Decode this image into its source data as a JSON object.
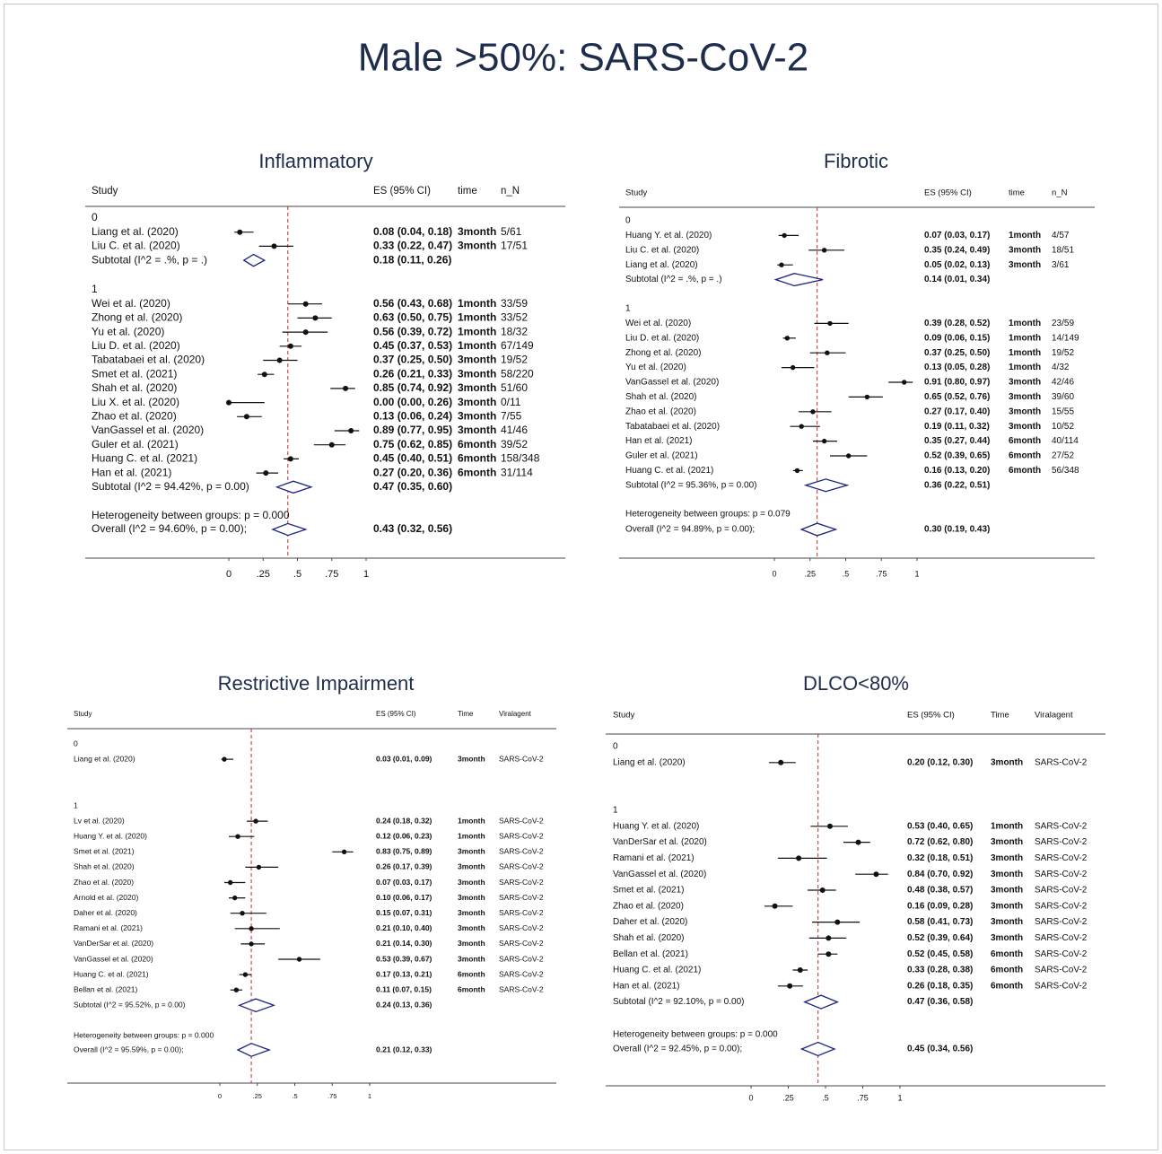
{
  "title": "Male >50%: SARS-CoV-2",
  "chart_data": [
    {
      "type": "forest",
      "title": "Inflammatory",
      "headers": [
        "Study",
        "ES (95% CI)",
        "time",
        "n_N"
      ],
      "groups": [
        {
          "label": "0",
          "studies": [
            "Liang et al.  (2020)",
            "Liu C. et al. (2020)"
          ],
          "values": [
            0.08,
            0.33
          ],
          "lower": [
            0.04,
            0.22
          ],
          "upper": [
            0.18,
            0.47
          ],
          "value_labels": [
            "0.08 (0.04, 0.18)",
            "0.33 (0.22, 0.47)"
          ],
          "time": [
            "3month",
            "3month"
          ],
          "extra": [
            "5/61",
            "17/51"
          ],
          "subtotal": {
            "label": "Subtotal  (I^2 = .%, p = .)",
            "value": 0.18,
            "lower": 0.11,
            "upper": 0.26,
            "value_label": "0.18 (0.11, 0.26)"
          }
        },
        {
          "label": "1",
          "studies": [
            "Wei et al. (2020)",
            "Zhong et al. (2020)",
            "Yu et al. (2020)",
            "Liu D. et al. (2020)",
            "Tabatabaei et al. (2020)",
            "Smet et al. (2021)",
            "Shah et al. (2020)",
            "Liu X. et al. (2020)",
            "Zhao et al. (2020)",
            "VanGassel et al. (2020)",
            "Guler et al. (2021)",
            "Huang C. et al. (2021)",
            "Han et al. (2021)"
          ],
          "values": [
            0.56,
            0.63,
            0.56,
            0.45,
            0.37,
            0.26,
            0.85,
            0.0,
            0.13,
            0.89,
            0.75,
            0.45,
            0.27
          ],
          "lower": [
            0.43,
            0.5,
            0.39,
            0.37,
            0.25,
            0.21,
            0.74,
            0.0,
            0.06,
            0.77,
            0.62,
            0.4,
            0.2
          ],
          "upper": [
            0.68,
            0.75,
            0.72,
            0.53,
            0.5,
            0.33,
            0.92,
            0.26,
            0.24,
            0.95,
            0.85,
            0.51,
            0.36
          ],
          "value_labels": [
            "0.56 (0.43, 0.68)",
            "0.63 (0.50, 0.75)",
            "0.56 (0.39, 0.72)",
            "0.45 (0.37, 0.53)",
            "0.37 (0.25, 0.50)",
            "0.26 (0.21, 0.33)",
            "0.85 (0.74, 0.92)",
            "0.00 (0.00, 0.26)",
            "0.13 (0.06, 0.24)",
            "0.89 (0.77, 0.95)",
            "0.75 (0.62, 0.85)",
            "0.45 (0.40, 0.51)",
            "0.27 (0.20, 0.36)"
          ],
          "time": [
            "1month",
            "1month",
            "1month",
            "1month",
            "3month",
            "3month",
            "3month",
            "3month",
            "3month",
            "3month",
            "6month",
            "6month",
            "6month"
          ],
          "extra": [
            "33/59",
            "33/52",
            "18/32",
            "67/149",
            "19/52",
            "58/220",
            "51/60",
            "0/11",
            "7/55",
            "41/46",
            "39/52",
            "158/348",
            "31/114"
          ],
          "subtotal": {
            "label": "Subtotal  (I^2 = 94.42%, p = 0.00)",
            "value": 0.47,
            "lower": 0.35,
            "upper": 0.6,
            "value_label": "0.47 (0.35, 0.60)"
          }
        }
      ],
      "heterogeneity": "Heterogeneity between groups: p = 0.000",
      "overall": {
        "label": "Overall  (I^2 = 94.60%, p = 0.00);",
        "value": 0.43,
        "lower": 0.32,
        "upper": 0.56,
        "value_label": "0.43 (0.32, 0.56)"
      },
      "xlim": [
        0,
        1
      ],
      "xticks": [
        0,
        {
          "value": 0.25,
          "label": ".25"
        },
        {
          "value": 0.5,
          "label": ".5"
        },
        {
          "value": 0.75,
          "label": ".75"
        },
        1
      ]
    },
    {
      "type": "forest",
      "title": "Fibrotic",
      "headers": [
        "Study",
        "ES (95% CI)",
        "time",
        "n_N"
      ],
      "groups": [
        {
          "label": "0",
          "studies": [
            "Huang Y. et al. (2020)",
            "Liu C. et al. (2020)",
            "Liang et al.  (2020)"
          ],
          "values": [
            0.07,
            0.35,
            0.05
          ],
          "lower": [
            0.03,
            0.24,
            0.02
          ],
          "upper": [
            0.17,
            0.49,
            0.13
          ],
          "value_labels": [
            "0.07 (0.03, 0.17)",
            "0.35 (0.24, 0.49)",
            "0.05 (0.02, 0.13)"
          ],
          "time": [
            "1month",
            "3month",
            "3month"
          ],
          "extra": [
            "4/57",
            "18/51",
            "3/61"
          ],
          "subtotal": {
            "label": "Subtotal  (I^2 = .%, p = .)",
            "value": 0.14,
            "lower": 0.01,
            "upper": 0.34,
            "value_label": "0.14 (0.01, 0.34)"
          }
        },
        {
          "label": "1",
          "studies": [
            "Wei et al. (2020)",
            "Liu D. et al. (2020)",
            "Zhong et al. (2020)",
            "Yu et al. (2020)",
            "VanGassel et al. (2020)",
            "Shah et al. (2020)",
            "Zhao et al. (2020)",
            "Tabatabaei et al. (2020)",
            "Han et al. (2021)",
            "Guler et al. (2021)",
            "Huang C. et al. (2021)"
          ],
          "values": [
            0.39,
            0.09,
            0.37,
            0.13,
            0.91,
            0.65,
            0.27,
            0.19,
            0.35,
            0.52,
            0.16
          ],
          "lower": [
            0.28,
            0.06,
            0.25,
            0.05,
            0.8,
            0.52,
            0.17,
            0.11,
            0.27,
            0.39,
            0.13
          ],
          "upper": [
            0.52,
            0.15,
            0.5,
            0.28,
            0.97,
            0.76,
            0.4,
            0.32,
            0.44,
            0.65,
            0.2
          ],
          "value_labels": [
            "0.39 (0.28, 0.52)",
            "0.09 (0.06, 0.15)",
            "0.37 (0.25, 0.50)",
            "0.13 (0.05, 0.28)",
            "0.91 (0.80, 0.97)",
            "0.65 (0.52, 0.76)",
            "0.27 (0.17, 0.40)",
            "0.19 (0.11, 0.32)",
            "0.35 (0.27, 0.44)",
            "0.52 (0.39, 0.65)",
            "0.16 (0.13, 0.20)"
          ],
          "time": [
            "1month",
            "1month",
            "1month",
            "1month",
            "3month",
            "3month",
            "3month",
            "3month",
            "6month",
            "6month",
            "6month"
          ],
          "extra": [
            "23/59",
            "14/149",
            "19/52",
            "4/32",
            "42/46",
            "39/60",
            "15/55",
            "10/52",
            "40/114",
            "27/52",
            "56/348"
          ],
          "subtotal": {
            "label": "Subtotal  (I^2 = 95.36%, p = 0.00)",
            "value": 0.36,
            "lower": 0.22,
            "upper": 0.51,
            "value_label": "0.36 (0.22, 0.51)"
          }
        }
      ],
      "heterogeneity": "Heterogeneity between groups: p = 0.079",
      "overall": {
        "label": "Overall  (I^2 = 94.89%, p = 0.00);",
        "value": 0.3,
        "lower": 0.19,
        "upper": 0.43,
        "value_label": "0.30 (0.19, 0.43)"
      },
      "xlim": [
        0,
        1
      ],
      "xticks": [
        0,
        {
          "value": 0.25,
          "label": ".25"
        },
        {
          "value": 0.5,
          "label": ".5"
        },
        {
          "value": 0.75,
          "label": ".75"
        },
        1
      ]
    },
    {
      "type": "forest",
      "title": "Restrictive Impairment",
      "headers": [
        "Study",
        "ES (95% CI)",
        "Time",
        "Viralagent"
      ],
      "groups": [
        {
          "label": "0",
          "studies": [
            "Liang et al.  (2020)"
          ],
          "values": [
            0.03
          ],
          "lower": [
            0.01
          ],
          "upper": [
            0.09
          ],
          "value_labels": [
            "0.03 (0.01, 0.09)"
          ],
          "time": [
            "3month"
          ],
          "extra": [
            "SARS-CoV-2"
          ]
        },
        {
          "label": "1",
          "studies": [
            "Lv et al. (2020)",
            "Huang Y. et al. (2020)",
            "Smet et al. (2021)",
            "Shah et al. (2020)",
            "Zhao et al. (2020)",
            "Arnold et al. (2020)",
            "Daher et al. (2020)",
            "Ramani et al. (2021)",
            "VanDerSar et al. (2020)",
            "VanGassel et al. (2020)",
            "Huang C. et al. (2021)",
            "Bellan et al. (2021)"
          ],
          "values": [
            0.24,
            0.12,
            0.83,
            0.26,
            0.07,
            0.1,
            0.15,
            0.21,
            0.21,
            0.53,
            0.17,
            0.11
          ],
          "lower": [
            0.18,
            0.06,
            0.75,
            0.17,
            0.03,
            0.06,
            0.07,
            0.1,
            0.14,
            0.39,
            0.13,
            0.07
          ],
          "upper": [
            0.32,
            0.23,
            0.89,
            0.39,
            0.17,
            0.17,
            0.31,
            0.4,
            0.3,
            0.67,
            0.21,
            0.15
          ],
          "value_labels": [
            "0.24 (0.18, 0.32)",
            "0.12 (0.06, 0.23)",
            "0.83 (0.75, 0.89)",
            "0.26 (0.17, 0.39)",
            "0.07 (0.03, 0.17)",
            "0.10 (0.06, 0.17)",
            "0.15 (0.07, 0.31)",
            "0.21 (0.10, 0.40)",
            "0.21 (0.14, 0.30)",
            "0.53 (0.39, 0.67)",
            "0.17 (0.13, 0.21)",
            "0.11 (0.07, 0.15)"
          ],
          "time": [
            "1month",
            "1month",
            "3month",
            "3month",
            "3month",
            "3month",
            "3month",
            "3month",
            "3month",
            "3month",
            "6month",
            "6month"
          ],
          "extra": [
            "SARS-CoV-2",
            "SARS-CoV-2",
            "SARS-CoV-2",
            "SARS-CoV-2",
            "SARS-CoV-2",
            "SARS-CoV-2",
            "SARS-CoV-2",
            "SARS-CoV-2",
            "SARS-CoV-2",
            "SARS-CoV-2",
            "SARS-CoV-2",
            "SARS-CoV-2"
          ],
          "subtotal": {
            "label": "Subtotal  (I^2 = 95.52%, p = 0.00)",
            "value": 0.24,
            "lower": 0.13,
            "upper": 0.36,
            "value_label": "0.24 (0.13, 0.36)"
          }
        }
      ],
      "heterogeneity": "Heterogeneity between groups: p = 0.000",
      "overall": {
        "label": "Overall  (I^2 = 95.59%, p = 0.00);",
        "value": 0.21,
        "lower": 0.12,
        "upper": 0.33,
        "value_label": "0.21 (0.12, 0.33)"
      },
      "xlim": [
        0,
        1
      ],
      "xticks": [
        0,
        {
          "value": 0.25,
          "label": ".25"
        },
        {
          "value": 0.5,
          "label": ".5"
        },
        {
          "value": 0.75,
          "label": ".75"
        },
        1
      ]
    },
    {
      "type": "forest",
      "title": "DLCO<80%",
      "headers": [
        "Study",
        "ES (95% CI)",
        "Time",
        "Viralagent"
      ],
      "groups": [
        {
          "label": "0",
          "studies": [
            "Liang et al.  (2020)"
          ],
          "values": [
            0.2
          ],
          "lower": [
            0.12
          ],
          "upper": [
            0.3
          ],
          "value_labels": [
            "0.20 (0.12, 0.30)"
          ],
          "time": [
            "3month"
          ],
          "extra": [
            "SARS-CoV-2"
          ]
        },
        {
          "label": "1",
          "studies": [
            "Huang Y. et al. (2020)",
            "VanDerSar et al. (2020)",
            "Ramani et al. (2021)",
            "VanGassel et al. (2020)",
            "Smet et al. (2021)",
            "Zhao et al. (2020)",
            "Daher et al. (2020)",
            "Shah et al. (2020)",
            "Bellan et al. (2021)",
            "Huang C. et al. (2021)",
            "Han et al. (2021)"
          ],
          "values": [
            0.53,
            0.72,
            0.32,
            0.84,
            0.48,
            0.16,
            0.58,
            0.52,
            0.52,
            0.33,
            0.26
          ],
          "lower": [
            0.4,
            0.62,
            0.18,
            0.7,
            0.38,
            0.09,
            0.41,
            0.39,
            0.45,
            0.28,
            0.18
          ],
          "upper": [
            0.65,
            0.8,
            0.51,
            0.92,
            0.57,
            0.28,
            0.73,
            0.64,
            0.58,
            0.38,
            0.35
          ],
          "value_labels": [
            "0.53 (0.40, 0.65)",
            "0.72 (0.62, 0.80)",
            "0.32 (0.18, 0.51)",
            "0.84 (0.70, 0.92)",
            "0.48 (0.38, 0.57)",
            "0.16 (0.09, 0.28)",
            "0.58 (0.41, 0.73)",
            "0.52 (0.39, 0.64)",
            "0.52 (0.45, 0.58)",
            "0.33 (0.28, 0.38)",
            "0.26 (0.18, 0.35)"
          ],
          "time": [
            "1month",
            "3month",
            "3month",
            "3month",
            "3month",
            "3month",
            "3month",
            "3month",
            "6month",
            "6month",
            "6month"
          ],
          "extra": [
            "SARS-CoV-2",
            "SARS-CoV-2",
            "SARS-CoV-2",
            "SARS-CoV-2",
            "SARS-CoV-2",
            "SARS-CoV-2",
            "SARS-CoV-2",
            "SARS-CoV-2",
            "SARS-CoV-2",
            "SARS-CoV-2",
            "SARS-CoV-2"
          ],
          "subtotal": {
            "label": "Subtotal  (I^2 = 92.10%, p = 0.00)",
            "value": 0.47,
            "lower": 0.36,
            "upper": 0.58,
            "value_label": "0.47 (0.36, 0.58)"
          }
        }
      ],
      "heterogeneity": "Heterogeneity between groups: p = 0.000",
      "overall": {
        "label": "Overall  (I^2 = 92.45%, p = 0.00);",
        "value": 0.45,
        "lower": 0.34,
        "upper": 0.56,
        "value_label": "0.45 (0.34, 0.56)"
      },
      "xlim": [
        0,
        1
      ],
      "xticks": [
        0,
        {
          "value": 0.25,
          "label": ".25"
        },
        {
          "value": 0.5,
          "label": ".5"
        },
        {
          "value": 0.75,
          "label": ".75"
        },
        1
      ]
    }
  ]
}
